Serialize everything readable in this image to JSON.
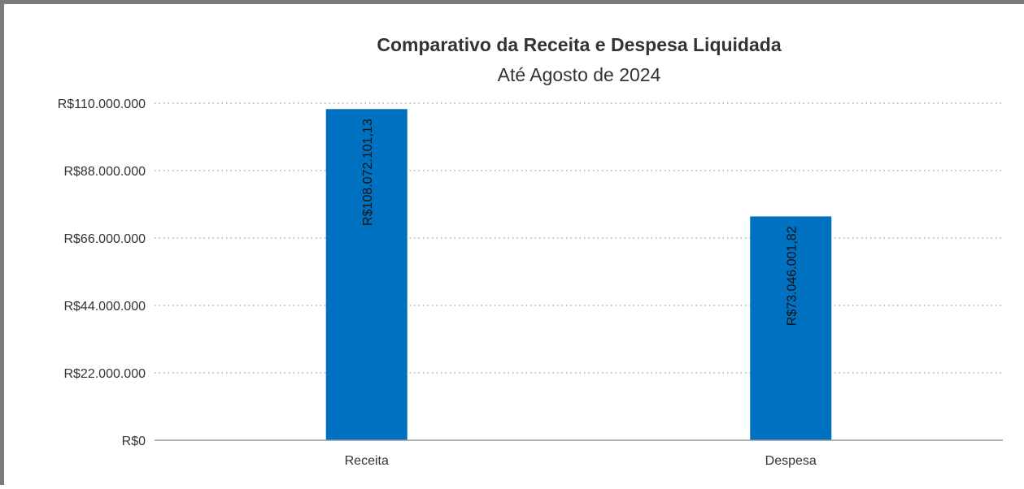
{
  "chart_data": {
    "type": "bar",
    "title": "Comparativo da Receita e Despesa Liquidada",
    "subtitle": "Até Agosto de 2024",
    "categories": [
      "Receita",
      "Despesa"
    ],
    "values": [
      108072101.13,
      73046001.82
    ],
    "data_labels": [
      "R$108.072.101,13",
      "R$73.046.001,82"
    ],
    "ylim": [
      0,
      110000000
    ],
    "y_ticks": [
      0,
      22000000,
      44000000,
      66000000,
      88000000,
      110000000
    ],
    "y_tick_labels": [
      "R$0",
      "R$22.000.000",
      "R$44.000.000",
      "R$66.000.000",
      "R$88.000.000",
      "R$110.000.000"
    ],
    "grid": true,
    "legend": "none",
    "bar_color": "#0070c0"
  }
}
